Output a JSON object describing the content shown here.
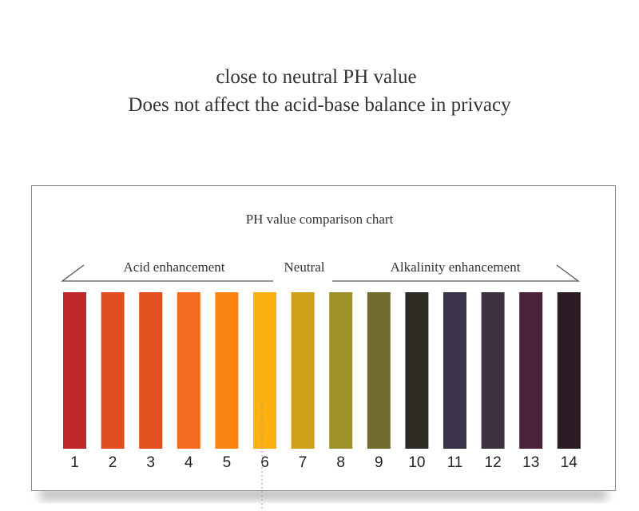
{
  "header": {
    "line1": "close to neutral PH value",
    "line2": "Does not affect the acid-base balance in privacy"
  },
  "card": {
    "title": "PH value comparison chart",
    "groups": {
      "acid": "Acid enhancement",
      "neutral": "Neutral",
      "alkaline": "Alkalinity enhancement"
    },
    "strips": [
      {
        "label": "1",
        "color": "#c0282c"
      },
      {
        "label": "2",
        "color": "#e04e22"
      },
      {
        "label": "3",
        "color": "#e0511f"
      },
      {
        "label": "4",
        "color": "#f26b1e"
      },
      {
        "label": "5",
        "color": "#fb8311"
      },
      {
        "label": "6",
        "color": "#fdb012"
      },
      {
        "label": "7",
        "color": "#cf9f19"
      },
      {
        "label": "8",
        "color": "#a0922b"
      },
      {
        "label": "9",
        "color": "#746b2e"
      },
      {
        "label": "10",
        "color": "#2d2a24"
      },
      {
        "label": "11",
        "color": "#3b3349"
      },
      {
        "label": "12",
        "color": "#3e3142"
      },
      {
        "label": "13",
        "color": "#4a2239"
      },
      {
        "label": "14",
        "color": "#2f1b26"
      }
    ]
  }
}
